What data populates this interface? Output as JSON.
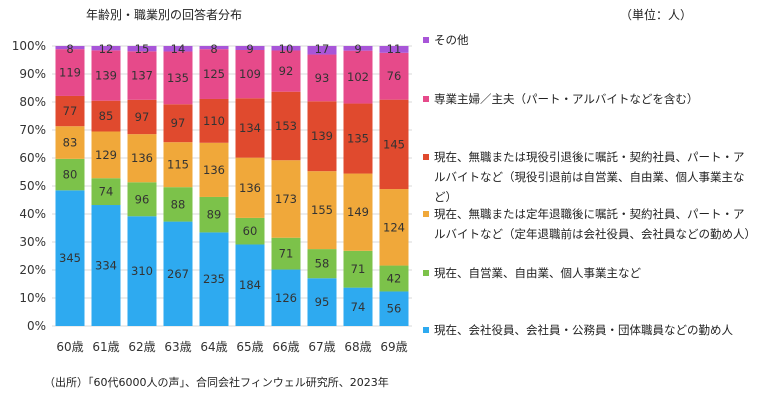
{
  "title": "年齢別・職業別の回答者分布",
  "unit": "（単位：人）",
  "source": "（出所）「60代6000人の声」、合同会社フィンウェル研究所、2023年",
  "chart_data": {
    "type": "bar",
    "stacked": true,
    "normalized": true,
    "categories": [
      "60歳",
      "61歳",
      "62歳",
      "63歳",
      "64歳",
      "65歳",
      "66歳",
      "67歳",
      "68歳",
      "69歳"
    ],
    "y_ticks": [
      "0%",
      "10%",
      "20%",
      "30%",
      "40%",
      "50%",
      "60%",
      "70%",
      "80%",
      "90%",
      "100%"
    ],
    "ylim": [
      0,
      100
    ],
    "grid": true,
    "legend_position": "right",
    "series": [
      {
        "name": "現在、会社役員、会社員・公務員・団体職員などの勤め人",
        "color": "#2eaaf0",
        "values": [
          345,
          334,
          310,
          267,
          235,
          184,
          126,
          95,
          74,
          56
        ]
      },
      {
        "name": "現在、自営業、自由業、個人事業主など",
        "color": "#7cc24a",
        "values": [
          80,
          74,
          96,
          88,
          89,
          60,
          71,
          58,
          71,
          42
        ]
      },
      {
        "name": "現在、無職または定年退職後に嘱託・契約社員、パート・アルバイトなど（定年退職前は会社役員、会社員などの勤め人）",
        "color": "#f0a83a",
        "values": [
          83,
          129,
          136,
          115,
          136,
          136,
          173,
          155,
          149,
          124
        ]
      },
      {
        "name": "現在、無職または現役引退後に嘱託・契約社員、パート・アルバイトなど（現役引退前は自営業、自由業、個人事業主など）",
        "color": "#e04a2e",
        "values": [
          77,
          85,
          97,
          97,
          110,
          134,
          153,
          139,
          135,
          145
        ]
      },
      {
        "name": "専業主婦／主夫（パート・アルバイトなどを含む）",
        "color": "#e64a8a",
        "values": [
          119,
          139,
          137,
          135,
          125,
          109,
          92,
          93,
          102,
          76
        ]
      },
      {
        "name": "その他",
        "color": "#a855d8",
        "values": [
          8,
          12,
          15,
          14,
          8,
          9,
          10,
          17,
          9,
          11
        ]
      }
    ]
  }
}
